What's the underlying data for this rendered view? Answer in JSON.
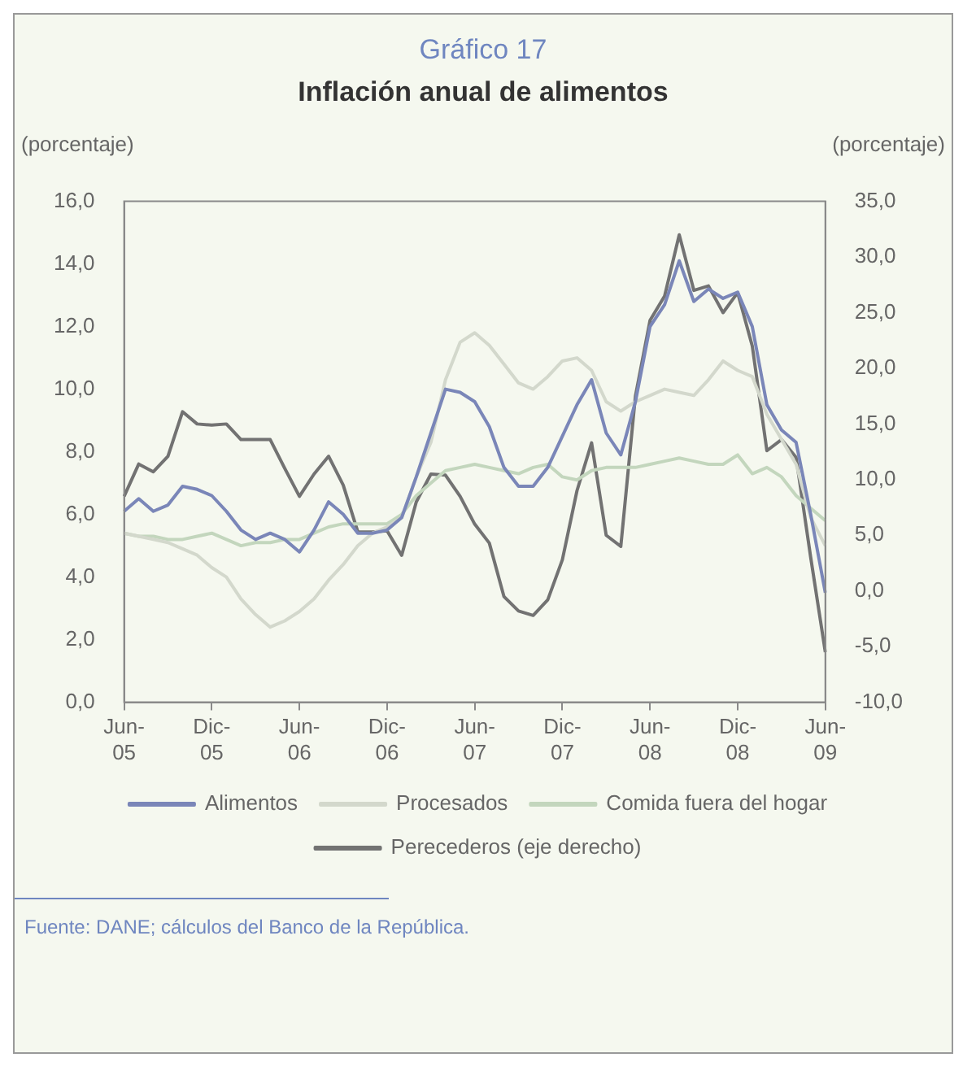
{
  "chart_data": {
    "type": "line",
    "title": "Gráfico 17",
    "subtitle": "Inflación anual de alimentos",
    "ylabel": "(porcentaje)",
    "y2label": "(porcentaje)",
    "categories": [
      "Jun-05",
      null,
      null,
      null,
      null,
      null,
      "Dic-05",
      null,
      null,
      null,
      null,
      null,
      "Jun-06",
      null,
      null,
      null,
      null,
      null,
      "Dic-06",
      null,
      null,
      null,
      null,
      null,
      "Jun-07",
      null,
      null,
      null,
      null,
      null,
      "Dic-07",
      null,
      null,
      null,
      null,
      null,
      "Jun-08",
      null,
      null,
      null,
      null,
      null,
      "Dic-08",
      null,
      null,
      null,
      null,
      null,
      "Jun-09"
    ],
    "series": [
      {
        "name": "Alimentos",
        "color": "#7a86b8",
        "values": [
          6.1,
          6.5,
          6.1,
          6.3,
          6.9,
          6.8,
          6.6,
          6.1,
          5.5,
          5.2,
          5.4,
          5.2,
          4.8,
          5.5,
          6.4,
          6.0,
          5.4,
          5.4,
          5.5,
          5.9,
          7.2,
          8.6,
          10.0,
          9.9,
          9.6,
          8.8,
          7.5,
          6.9,
          6.9,
          7.5,
          8.5,
          9.5,
          10.3,
          8.6,
          7.9,
          9.6,
          12.0,
          12.7,
          14.1,
          12.8,
          13.2,
          12.9,
          13.1,
          12.0,
          9.5,
          8.7,
          8.3,
          6.0,
          3.5
        ]
      },
      {
        "name": "Procesados",
        "color": "#d3d8cc",
        "values": [
          5.4,
          5.3,
          5.2,
          5.1,
          4.9,
          4.7,
          4.3,
          4.0,
          3.3,
          2.8,
          2.4,
          2.6,
          2.9,
          3.3,
          3.9,
          4.4,
          5.0,
          5.4,
          5.6,
          5.9,
          7.2,
          8.3,
          10.3,
          11.5,
          11.8,
          11.4,
          10.8,
          10.2,
          10.0,
          10.4,
          10.9,
          11.0,
          10.6,
          9.6,
          9.3,
          9.6,
          9.8,
          10.0,
          9.9,
          9.8,
          10.3,
          10.9,
          10.6,
          10.4,
          9.2,
          8.4,
          7.6,
          5.9,
          5.0
        ]
      },
      {
        "name": "Comida fuera del hogar",
        "color": "#c3d6bd",
        "values": [
          5.4,
          5.3,
          5.3,
          5.2,
          5.2,
          5.3,
          5.4,
          5.2,
          5.0,
          5.1,
          5.1,
          5.2,
          5.2,
          5.4,
          5.6,
          5.7,
          5.7,
          5.7,
          5.7,
          6.0,
          6.6,
          7.0,
          7.4,
          7.5,
          7.6,
          7.5,
          7.4,
          7.3,
          7.5,
          7.6,
          7.2,
          7.1,
          7.4,
          7.5,
          7.5,
          7.5,
          7.6,
          7.7,
          7.8,
          7.7,
          7.6,
          7.6,
          7.9,
          7.3,
          7.5,
          7.2,
          6.6,
          6.2,
          5.8
        ]
      },
      {
        "name": "Perecederos (eje derecho)",
        "color": "#727272",
        "axis": "y2",
        "values": [
          8.5,
          11.4,
          10.7,
          12.1,
          16.1,
          15.0,
          14.9,
          15.0,
          13.6,
          13.6,
          13.6,
          11.0,
          8.5,
          10.5,
          12.1,
          9.5,
          5.3,
          5.3,
          5.4,
          3.2,
          8.0,
          10.5,
          10.4,
          8.5,
          6.0,
          4.3,
          -0.5,
          -1.8,
          -2.2,
          -0.8,
          2.8,
          9.0,
          13.3,
          5.0,
          4.0,
          17.5,
          24.3,
          26.5,
          32.0,
          27.0,
          27.4,
          25.0,
          26.8,
          22.0,
          12.6,
          13.6,
          12.0,
          3.0,
          -5.5
        ]
      }
    ],
    "ylim": [
      0,
      16
    ],
    "yticks": [
      {
        "value": 0,
        "label": "0,0"
      },
      {
        "value": 2,
        "label": "2,0"
      },
      {
        "value": 4,
        "label": "4,0"
      },
      {
        "value": 6,
        "label": "6,0"
      },
      {
        "value": 8,
        "label": "8,0"
      },
      {
        "value": 10,
        "label": "10,0"
      },
      {
        "value": 12,
        "label": "12,0"
      },
      {
        "value": 14,
        "label": "14,0"
      },
      {
        "value": 16,
        "label": "16,0"
      }
    ],
    "y2lim": [
      -10,
      35
    ],
    "y2ticks": [
      {
        "value": -10,
        "label": "-10,0"
      },
      {
        "value": -5,
        "label": "-5,0"
      },
      {
        "value": 0,
        "label": "0,0"
      },
      {
        "value": 5,
        "label": "5,0"
      },
      {
        "value": 10,
        "label": "10,0"
      },
      {
        "value": 15,
        "label": "15,0"
      },
      {
        "value": 20,
        "label": "20,0"
      },
      {
        "value": 25,
        "label": "25,0"
      },
      {
        "value": 30,
        "label": "30,0"
      },
      {
        "value": 35,
        "label": "35,0"
      }
    ],
    "grid": false,
    "legend": "bottom",
    "marker": "none",
    "line_style": "solid",
    "annotations": [
      "Fuente: DANE; cálculos del Banco de la República."
    ]
  }
}
